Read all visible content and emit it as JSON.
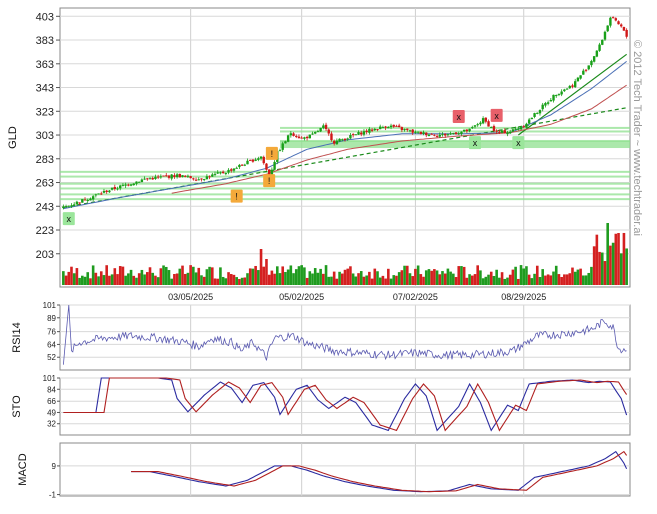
{
  "watermark": "© 2012 Tech Trader ~ www.techtrader.ai",
  "chart_data": [
    {
      "type": "candlestick",
      "ylabel": "GLD",
      "ylim": [
        175,
        410
      ],
      "yticks": [
        "403",
        "383",
        "363",
        "343",
        "323",
        "303",
        "283",
        "263",
        "243",
        "223",
        "203"
      ],
      "xticks": [
        {
          "label": "03/05/2025",
          "index": 47
        },
        {
          "label": "05/02/2025",
          "index": 88
        },
        {
          "label": "07/02/2025",
          "index": 130
        },
        {
          "label": "08/29/2025",
          "index": 170
        }
      ],
      "n_bars": 200,
      "price_anchors": [
        [
          0,
          242
        ],
        [
          6,
          247
        ],
        [
          16,
          256
        ],
        [
          30,
          266
        ],
        [
          42,
          269
        ],
        [
          50,
          266
        ],
        [
          60,
          272
        ],
        [
          68,
          280
        ],
        [
          73,
          285
        ],
        [
          76,
          268
        ],
        [
          79,
          288
        ],
        [
          84,
          305
        ],
        [
          88,
          300
        ],
        [
          92,
          303
        ],
        [
          96,
          310
        ],
        [
          100,
          297
        ],
        [
          110,
          305
        ],
        [
          120,
          311
        ],
        [
          130,
          305
        ],
        [
          140,
          303
        ],
        [
          150,
          307
        ],
        [
          155,
          316
        ],
        [
          160,
          305
        ],
        [
          165,
          306
        ],
        [
          170,
          311
        ],
        [
          176,
          325
        ],
        [
          182,
          338
        ],
        [
          188,
          345
        ],
        [
          194,
          362
        ],
        [
          198,
          378
        ],
        [
          202,
          402
        ],
        [
          206,
          394
        ],
        [
          208,
          386
        ]
      ],
      "moving_average_anchors": {
        "blue": [
          [
            0,
            241
          ],
          [
            20,
            250
          ],
          [
            40,
            258
          ],
          [
            60,
            266
          ],
          [
            75,
            275
          ],
          [
            90,
            291
          ],
          [
            105,
            299
          ],
          [
            125,
            304
          ],
          [
            145,
            304
          ],
          [
            165,
            305
          ],
          [
            180,
            320
          ],
          [
            195,
            342
          ],
          [
            208,
            365
          ]
        ],
        "red": [
          [
            40,
            254
          ],
          [
            60,
            262
          ],
          [
            75,
            270
          ],
          [
            90,
            282
          ],
          [
            105,
            291
          ],
          [
            125,
            298
          ],
          [
            145,
            302
          ],
          [
            165,
            305
          ],
          [
            180,
            312
          ],
          [
            195,
            325
          ],
          [
            208,
            345
          ]
        ]
      },
      "trendlines": [
        {
          "from": [
            0,
            242
          ],
          "to": [
            208,
            326
          ],
          "style": "dashed"
        },
        {
          "from": [
            168,
            303
          ],
          "to": [
            208,
            371
          ],
          "style": "solid"
        }
      ],
      "support_levels": [
        309,
        306,
        298,
        295,
        272,
        268,
        262,
        258,
        253,
        249
      ],
      "signals": [
        {
          "label": "x",
          "index": 2,
          "price": 233,
          "kind": "green-box"
        },
        {
          "label": "!",
          "index": 76,
          "price": 265,
          "kind": "orange-box"
        },
        {
          "label": "!",
          "index": 64,
          "price": 252,
          "kind": "orange-box"
        },
        {
          "label": "!",
          "index": 77,
          "price": 288,
          "kind": "orange-box"
        },
        {
          "label": "x",
          "index": 146,
          "price": 319,
          "kind": "red-box"
        },
        {
          "label": "x",
          "index": 160,
          "price": 320,
          "kind": "red-box"
        },
        {
          "label": "x",
          "index": 152,
          "price": 297,
          "kind": "green-box"
        },
        {
          "label": "x",
          "index": 168,
          "price": 297,
          "kind": "green-box"
        }
      ]
    },
    {
      "type": "line",
      "ylabel": "RSI14",
      "ylim": [
        40,
        101
      ],
      "yticks": [
        "101",
        "89",
        "76",
        "64",
        "52"
      ],
      "anchors": [
        [
          0,
          45
        ],
        [
          2,
          101
        ],
        [
          3,
          58
        ],
        [
          6,
          66
        ],
        [
          15,
          70
        ],
        [
          25,
          72
        ],
        [
          35,
          70
        ],
        [
          45,
          66
        ],
        [
          50,
          62
        ],
        [
          55,
          70
        ],
        [
          62,
          66
        ],
        [
          66,
          58
        ],
        [
          70,
          66
        ],
        [
          75,
          52
        ],
        [
          78,
          70
        ],
        [
          85,
          72
        ],
        [
          90,
          65
        ],
        [
          100,
          58
        ],
        [
          110,
          56
        ],
        [
          120,
          54
        ],
        [
          130,
          56
        ],
        [
          140,
          54
        ],
        [
          150,
          54
        ],
        [
          160,
          56
        ],
        [
          166,
          58
        ],
        [
          170,
          64
        ],
        [
          175,
          72
        ],
        [
          185,
          74
        ],
        [
          195,
          78
        ],
        [
          200,
          86
        ],
        [
          203,
          80
        ],
        [
          205,
          60
        ],
        [
          208,
          60
        ]
      ]
    },
    {
      "type": "line",
      "ylabel": "STO",
      "ylim": [
        15,
        101
      ],
      "yticks": [
        "101",
        "84",
        "66",
        "49",
        "32"
      ],
      "series_colors": [
        "#2b2ba0",
        "#b02020"
      ],
      "anchors": [
        [
          0,
          49
        ],
        [
          12,
          49
        ],
        [
          14,
          101
        ],
        [
          22,
          101
        ],
        [
          35,
          101
        ],
        [
          40,
          98
        ],
        [
          42,
          70
        ],
        [
          46,
          50
        ],
        [
          52,
          75
        ],
        [
          58,
          95
        ],
        [
          62,
          86
        ],
        [
          66,
          64
        ],
        [
          70,
          90
        ],
        [
          74,
          94
        ],
        [
          78,
          72
        ],
        [
          80,
          46
        ],
        [
          86,
          84
        ],
        [
          90,
          90
        ],
        [
          94,
          68
        ],
        [
          98,
          55
        ],
        [
          104,
          72
        ],
        [
          108,
          64
        ],
        [
          114,
          30
        ],
        [
          120,
          22
        ],
        [
          126,
          70
        ],
        [
          130,
          92
        ],
        [
          134,
          74
        ],
        [
          138,
          22
        ],
        [
          146,
          58
        ],
        [
          150,
          92
        ],
        [
          154,
          64
        ],
        [
          158,
          22
        ],
        [
          164,
          60
        ],
        [
          168,
          52
        ],
        [
          172,
          92
        ],
        [
          180,
          96
        ],
        [
          188,
          98
        ],
        [
          194,
          94
        ],
        [
          198,
          96
        ],
        [
          202,
          95
        ],
        [
          204,
          82
        ],
        [
          206,
          70
        ],
        [
          208,
          45
        ]
      ]
    },
    {
      "type": "line",
      "ylabel": "MACD",
      "ylim": [
        -1.5,
        17
      ],
      "yticks": [
        "9",
        "-1"
      ],
      "series_colors": [
        "#2b2ba0",
        "#b02020"
      ],
      "anchors": [
        [
          25,
          7
        ],
        [
          32,
          7
        ],
        [
          40,
          5.5
        ],
        [
          50,
          3.5
        ],
        [
          60,
          2
        ],
        [
          68,
          4
        ],
        [
          72,
          6
        ],
        [
          78,
          9
        ],
        [
          84,
          9
        ],
        [
          90,
          7.5
        ],
        [
          96,
          5.5
        ],
        [
          104,
          3.5
        ],
        [
          112,
          2
        ],
        [
          122,
          0.5
        ],
        [
          132,
          0
        ],
        [
          142,
          0.3
        ],
        [
          150,
          2.5
        ],
        [
          158,
          1
        ],
        [
          168,
          0.5
        ],
        [
          174,
          5
        ],
        [
          184,
          7
        ],
        [
          194,
          9
        ],
        [
          200,
          11.5
        ],
        [
          204,
          14
        ],
        [
          207,
          10
        ],
        [
          208,
          8
        ]
      ]
    }
  ]
}
